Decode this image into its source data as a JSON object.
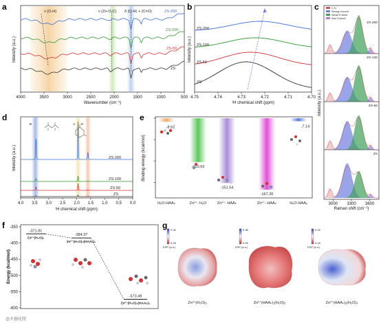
{
  "figure": {
    "panel_letters": [
      "a",
      "b",
      "c",
      "d",
      "e",
      "f",
      "g"
    ],
    "watermark": "@大器化院"
  },
  "chart_data": [
    {
      "panel": "a",
      "type": "line",
      "xlabel": "Wavenumber (cm⁻¹)",
      "ylabel": "Intensity (a.u.)",
      "xlim": [
        4000,
        500
      ],
      "x_ticks": [
        4000,
        3500,
        3000,
        2500,
        2000,
        1500,
        1000,
        500
      ],
      "annotations": [
        "ν (O-H)",
        "ν (Zn-O-C)",
        "δ (O-H) + (C=O)"
      ],
      "series": [
        {
          "name": "ZS-200",
          "color": "#3a6fd8"
        },
        {
          "name": "ZS-100",
          "color": "#2e9b2e"
        },
        {
          "name": "ZS-50",
          "color": "#d93030"
        },
        {
          "name": "ZS",
          "color": "#333333"
        }
      ]
    },
    {
      "panel": "b",
      "type": "line",
      "xlabel": "¹H chemical shift (ppm)",
      "ylabel": "Intensity (a.u.)",
      "xlim": [
        4.75,
        4.7
      ],
      "x_ticks": [
        "4.75",
        "4.74",
        "4.73",
        "4.72",
        "4.71",
        "4.70"
      ],
      "series": [
        {
          "name": "ZS-200",
          "color": "#3a6fd8",
          "peak": 4.722
        },
        {
          "name": "ZS-100",
          "color": "#2e9b2e",
          "peak": 4.724
        },
        {
          "name": "ZS-50",
          "color": "#d93030",
          "peak": 4.726
        },
        {
          "name": "ZS",
          "color": "#333333",
          "peak": 4.728
        }
      ]
    },
    {
      "panel": "c",
      "type": "area",
      "xlabel": "Raman shift (cm⁻¹)",
      "ylabel": "Intensity (a.u.)",
      "x_ticks": [
        3000,
        3300,
        3600
      ],
      "legend": [
        {
          "label": "C-H",
          "color": "#cc5555"
        },
        {
          "label": "Strong H-bond",
          "color": "#6f7fe0"
        },
        {
          "label": "Weak H-bond",
          "color": "#3f9f5a"
        },
        {
          "label": "Non H-bond",
          "color": "#a77fd8"
        }
      ],
      "subplots": [
        "ZS-200",
        "ZS-100",
        "ZS-50",
        "ZS"
      ]
    },
    {
      "panel": "d",
      "type": "line",
      "xlabel": "¹H chemical shift (ppm)",
      "ylabel": "Intensity (a.u.)",
      "xlim": [
        4.0,
        0.0
      ],
      "x_ticks": [
        "4.0",
        "3.5",
        "3.0",
        "2.5",
        "2.0",
        "1.5",
        "1.0",
        "0.5",
        "0.0"
      ],
      "peak_labels": [
        "B",
        "A",
        "E"
      ],
      "series": [
        {
          "name": "ZS-200",
          "color": "#3a6fd8"
        },
        {
          "name": "ZS-100",
          "color": "#2e9b2e"
        },
        {
          "name": "ZS-50",
          "color": "#d93030"
        },
        {
          "name": "ZS",
          "color": "#333333"
        }
      ]
    },
    {
      "panel": "e",
      "type": "bar",
      "ylabel": "Binding energy (kcal/mol)",
      "categories": [
        "H₂O-HAAₖ",
        "Zn²⁺- H₂O",
        "Zn²⁺- HAAₖ",
        "Zn²⁺- HAAₖ",
        "H₂O-HAAₑ"
      ],
      "values": [
        -8.62,
        -102.63,
        -151.54,
        -167.2,
        -7.14
      ],
      "value_labels": [
        "-8.62",
        "-102.63",
        "-151.54",
        "-167.20",
        "-7.14"
      ],
      "colors": [
        "#f0b070",
        "#5cc85c",
        "#a98cd8",
        "#e050d8",
        "#5a7fe0"
      ],
      "ylim": [
        -180,
        0
      ]
    },
    {
      "panel": "f",
      "type": "line",
      "ylabel": "Energy (kcal/mol)",
      "y_ticks": [
        -350,
        -400,
        -450,
        -500,
        -550,
        -600
      ],
      "ylim": [
        -600,
        -350
      ],
      "points": [
        {
          "value": -371.81,
          "label": "-371.81",
          "species": "Zn²⁺(H₂O)₆"
        },
        {
          "value": -384.37,
          "label": "-384.37",
          "species": "Zn²⁺(H₂O)₅(HAAₖ)₁"
        },
        {
          "value": -573.49,
          "label": "-573.49",
          "species": "Zn²⁺(H₂O)₄(HAAₖ)₂"
        }
      ]
    },
    {
      "panel": "g",
      "type": "heatmap",
      "maps": [
        {
          "caption": "Zn²⁺(H₂O)₆",
          "scale_max": "0.34",
          "scale_min": "0.28",
          "scale_label": "ESP (a.u.)"
        },
        {
          "caption": "Zn²⁺(HAAₖ)₁(H₂O)₅",
          "scale_max": "0.38",
          "scale_min": "0.06",
          "scale_label": "ESP (a.u.)"
        },
        {
          "caption": "Zn²⁺(HAAₖ)₂(H₂O)₄",
          "scale_max": "0.32",
          "scale_min": "0.18",
          "scale_label": "ESP (a.u.)"
        }
      ]
    }
  ]
}
